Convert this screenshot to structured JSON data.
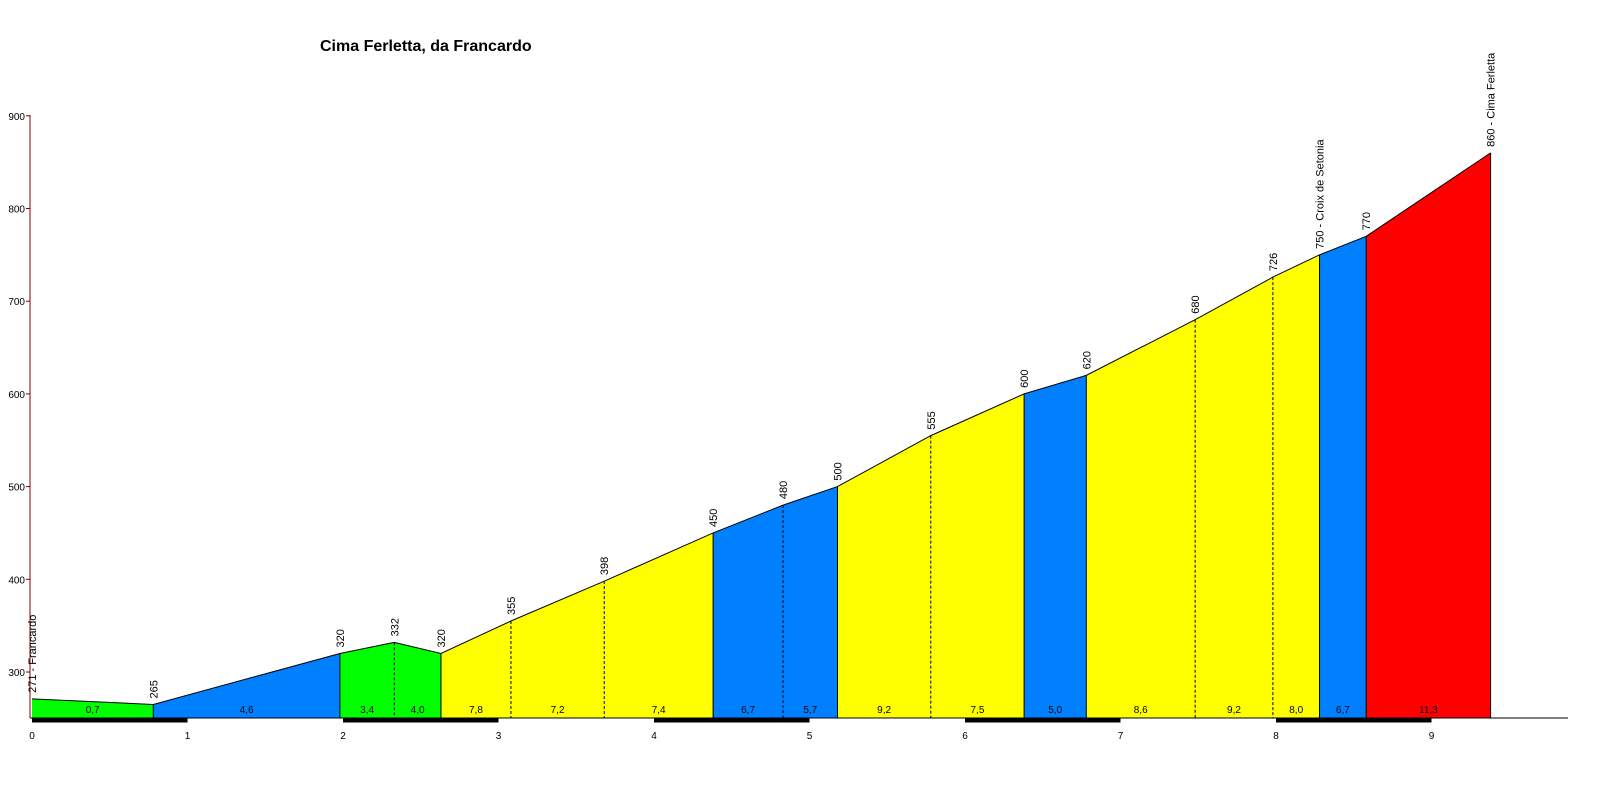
{
  "chart_data": {
    "type": "area",
    "title": "Cima Ferletta, da Francardo",
    "xlabel": "",
    "ylabel": "",
    "xlim": [
      0,
      9.9
    ],
    "ylim": [
      250,
      900
    ],
    "x_ticks": [
      "0",
      "1",
      "2",
      "3",
      "4",
      "5",
      "6",
      "7",
      "8",
      "9"
    ],
    "y_ticks": [
      "300",
      "400",
      "500",
      "600",
      "700",
      "800",
      "900"
    ],
    "grid": false,
    "points": [
      {
        "x": 0.0,
        "y": 271,
        "label": "271 - Francardo"
      },
      {
        "x": 0.78,
        "y": 265,
        "label": "265"
      },
      {
        "x": 1.98,
        "y": 320,
        "label": "320"
      },
      {
        "x": 2.33,
        "y": 332,
        "label": "332"
      },
      {
        "x": 2.63,
        "y": 320,
        "label": "320"
      },
      {
        "x": 3.08,
        "y": 355,
        "label": "355"
      },
      {
        "x": 3.68,
        "y": 398,
        "label": "398"
      },
      {
        "x": 4.38,
        "y": 450,
        "label": "450"
      },
      {
        "x": 4.83,
        "y": 480,
        "label": "480"
      },
      {
        "x": 5.18,
        "y": 500,
        "label": "500"
      },
      {
        "x": 5.78,
        "y": 555,
        "label": "555"
      },
      {
        "x": 6.38,
        "y": 600,
        "label": "600"
      },
      {
        "x": 6.78,
        "y": 620,
        "label": "620"
      },
      {
        "x": 7.48,
        "y": 680,
        "label": "680"
      },
      {
        "x": 7.98,
        "y": 726,
        "label": "726"
      },
      {
        "x": 8.28,
        "y": 750,
        "label": "750 - Croix de Setonia"
      },
      {
        "x": 8.58,
        "y": 770,
        "label": "770"
      },
      {
        "x": 9.38,
        "y": 860,
        "label": "860 - Cima Ferletta"
      }
    ],
    "segments": [
      {
        "gradient": "0,7",
        "color": "#00ff00"
      },
      {
        "gradient": "4,6",
        "color": "#0080ff"
      },
      {
        "gradient": "3,4",
        "color": "#00ff00"
      },
      {
        "gradient": "4,0",
        "color": "#00ff00"
      },
      {
        "gradient": "7,8",
        "color": "#ffff00"
      },
      {
        "gradient": "7,2",
        "color": "#ffff00"
      },
      {
        "gradient": "7,4",
        "color": "#ffff00"
      },
      {
        "gradient": "6,7",
        "color": "#0080ff"
      },
      {
        "gradient": "5,7",
        "color": "#0080ff"
      },
      {
        "gradient": "9,2",
        "color": "#ffff00"
      },
      {
        "gradient": "7,5",
        "color": "#ffff00"
      },
      {
        "gradient": "5,0",
        "color": "#0080ff"
      },
      {
        "gradient": "8,6",
        "color": "#ffff00"
      },
      {
        "gradient": "9,2",
        "color": "#ffff00"
      },
      {
        "gradient": "8,0",
        "color": "#ffff00"
      },
      {
        "gradient": "6,7",
        "color": "#0080ff"
      },
      {
        "gradient": "11,3",
        "color": "#ff0000"
      }
    ],
    "colors": {
      "axis": "#000000",
      "y_axis": "#800000",
      "outline": "#000000"
    }
  }
}
